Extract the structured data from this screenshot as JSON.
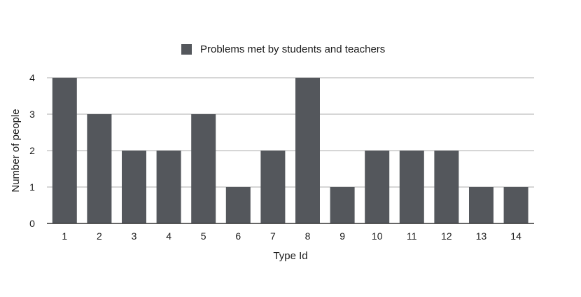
{
  "chart_data": {
    "type": "bar",
    "title": "",
    "xlabel": "Type Id",
    "ylabel": "Number of people",
    "categories": [
      "1",
      "2",
      "3",
      "4",
      "5",
      "6",
      "7",
      "8",
      "9",
      "10",
      "11",
      "12",
      "13",
      "14"
    ],
    "series": [
      {
        "name": "Problems met by students and teachers",
        "values": [
          4,
          3,
          2,
          2,
          3,
          1,
          2,
          4,
          1,
          2,
          2,
          2,
          1,
          1
        ]
      }
    ],
    "ylim": [
      0,
      4
    ],
    "yticks": [
      0,
      1,
      2,
      3,
      4
    ],
    "grid": true,
    "legend_position": "top-center",
    "bar_color": "#54575c",
    "grid_color": "#c8c8c8",
    "axis_color": "#333333"
  }
}
